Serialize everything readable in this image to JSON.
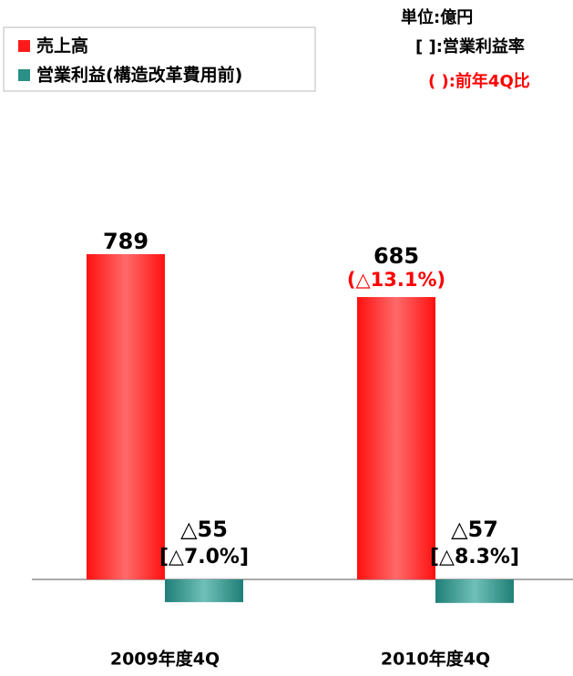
{
  "chart_data": {
    "type": "bar",
    "unit": "単位:億円",
    "notes": [
      {
        "text": "[ ]:営業利益率",
        "color": "#000000"
      },
      {
        "text": "( ):前年4Q比",
        "color": "#ff0000"
      }
    ],
    "categories": [
      "2009年度4Q",
      "2010年度4Q"
    ],
    "series": [
      {
        "name": "売上高",
        "color": "#ff1a1a",
        "values": [
          789,
          685
        ],
        "value_labels": [
          "789",
          "685"
        ],
        "change_labels": [
          null,
          "(△13.1%)"
        ]
      },
      {
        "name": "営業利益(構造改革費用前)",
        "color": "#2a8f86",
        "values": [
          -55,
          -57
        ],
        "value_labels": [
          "△55",
          "△57"
        ],
        "ratio_labels": [
          "[△7.0%]",
          "[△8.3%]"
        ]
      }
    ],
    "ylim": [
      -140,
      1000
    ]
  }
}
